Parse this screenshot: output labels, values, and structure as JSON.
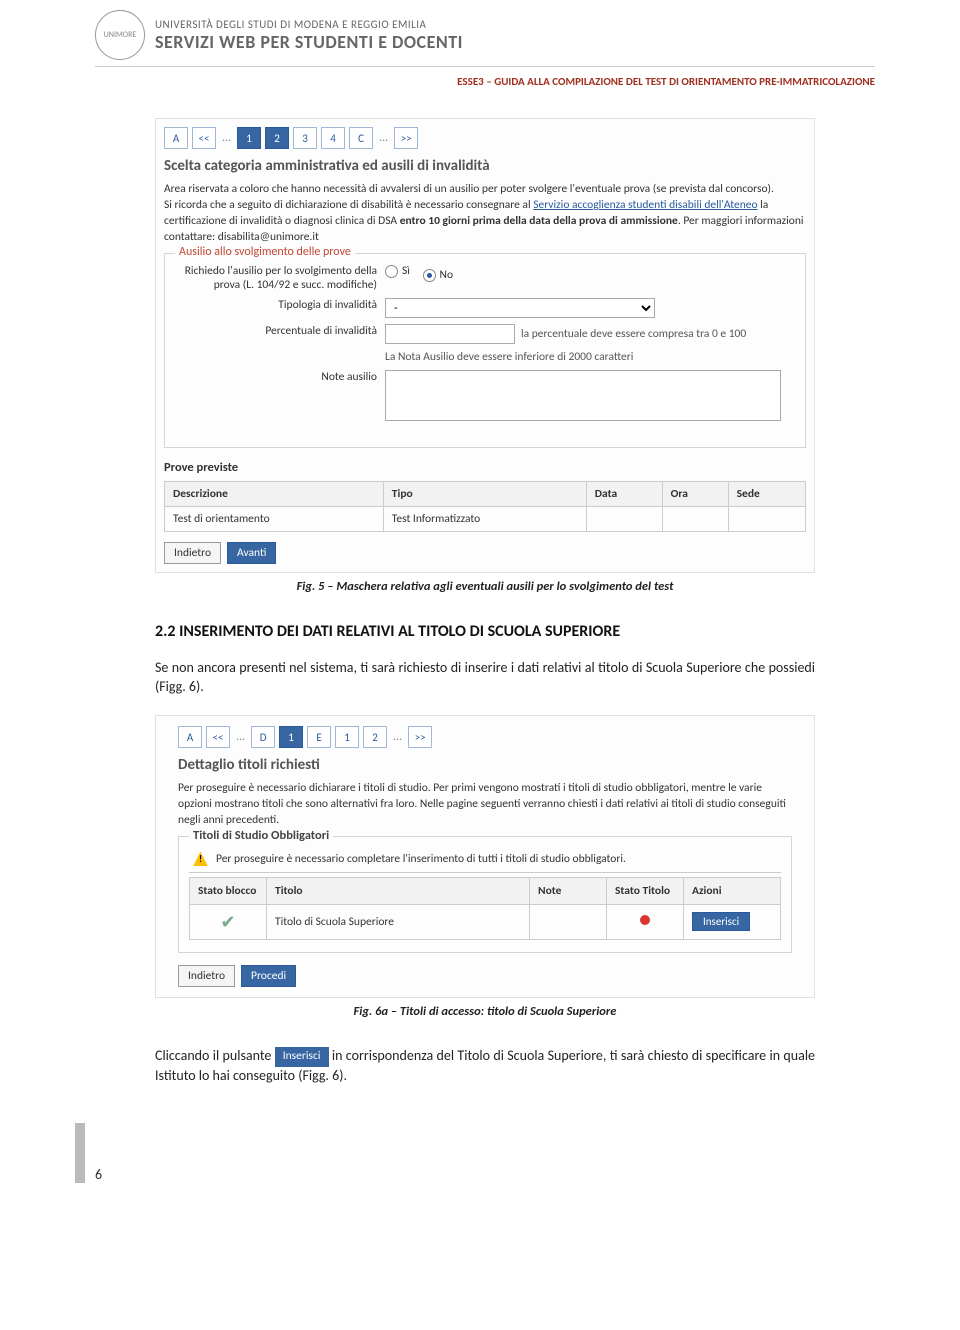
{
  "header": {
    "university": "UNIVERSITÀ DEGLI STUDI DI MODENA E REGGIO EMILIA",
    "service": "SERVIZI WEB PER STUDENTI E DOCENTI",
    "subtitle": "ESSE3 – GUIDA ALLA COMPILAZIONE DEL TEST DI ORIENTAMENTO PRE-IMMATRICOLAZIONE"
  },
  "fig5": {
    "pager": [
      "A",
      "<<",
      "...",
      "1",
      "2",
      "3",
      "4",
      "C",
      "...",
      ">>"
    ],
    "pager_active": [
      3,
      4
    ],
    "title": "Scelta categoria amministrativa ed ausili di invalidità",
    "para_html": "Area riservata a coloro che hanno necessità di avvalersi di un ausilio per poter svolgere l'eventuale prova (se prevista dal concorso).<br>Si ricorda che a seguito di dichiarazione di disabilità è necessario consegnare al <a href='#'>Servizio accoglienza studenti disabili dell'Ateneo</a> la certificazione di invalidità o diagnosi clinica di DSA <b>entro 10 giorni prima della data della prova di ammissione</b>. Per maggiori informazioni contattare: disabilita@unimore.it",
    "fieldset_legend": "Ausilio allo svolgimento delle prove",
    "row1_label": "Richiedo l'ausilio per lo svolgimento della prova (L. 104/92 e succ. modifiche)",
    "row1_si": "Sì",
    "row1_no": "No",
    "row2_label": "Tipologia di invalidità",
    "row2_value": "-",
    "row3_label": "Percentuale di invalidità",
    "row3_hint": "la percentuale deve essere compresa tra 0 e 100",
    "row4_hint": "La Nota Ausilio deve essere inferiore di 2000 caratteri",
    "row4_label": "Note ausilio",
    "prove_title": "Prove previste",
    "table_headers": [
      "Descrizione",
      "Tipo",
      "Data",
      "Ora",
      "Sede"
    ],
    "table_row": [
      "Test di orientamento",
      "Test Informatizzato",
      "",
      "",
      ""
    ],
    "btn_back": "Indietro",
    "btn_next": "Avanti",
    "caption": "Fig. 5 – Maschera relativa agli eventuali ausili per lo svolgimento del test"
  },
  "section": {
    "heading": "2.2 INSERIMENTO DEI DATI RELATIVI AL TITOLO DI SCUOLA SUPERIORE",
    "para": "Se non ancora presenti nel sistema, ti sarà richiesto di inserire i dati relativi al titolo di Scuola Superiore che possiedi (Figg. 6)."
  },
  "fig6": {
    "pager": [
      "A",
      "<<",
      "...",
      "D",
      "1",
      "E",
      "1",
      "2",
      "...",
      ">>"
    ],
    "pager_active": [
      4
    ],
    "title": "Dettaglio titoli richiesti",
    "para": "Per proseguire è necessario dichiarare i titoli di studio. Per primi vengono mostrati i titoli di studio obbligatori, mentre le varie opzioni mostrano titoli che sono alternativi fra loro. Nelle pagine seguenti verranno chiesti i dati relativi ai titoli di studio conseguiti negli anni precedenti.",
    "fs_legend": "Titoli di Studio Obbligatori",
    "warn": "Per proseguire è necessario completare l'inserimento di tutti i titoli di studio obbligatori.",
    "th": [
      "Stato blocco",
      "Titolo",
      "Note",
      "Stato Titolo",
      "Azioni"
    ],
    "row_title": "Titolo di Scuola Superiore",
    "btn_ins": "Inserisci",
    "btn_back": "Indietro",
    "btn_proc": "Procedi",
    "caption": "Fig. 6a – Titoli di accesso: titolo di Scuola Superiore"
  },
  "closing": {
    "pre": "Cliccando il pulsante ",
    "btn": "Inserisci",
    "post": " in corrispondenza del Titolo di Scuola Superiore, ti sarà chiesto di specificare in quale Istituto lo hai conseguito (Figg. 6)."
  },
  "page_number": "6"
}
